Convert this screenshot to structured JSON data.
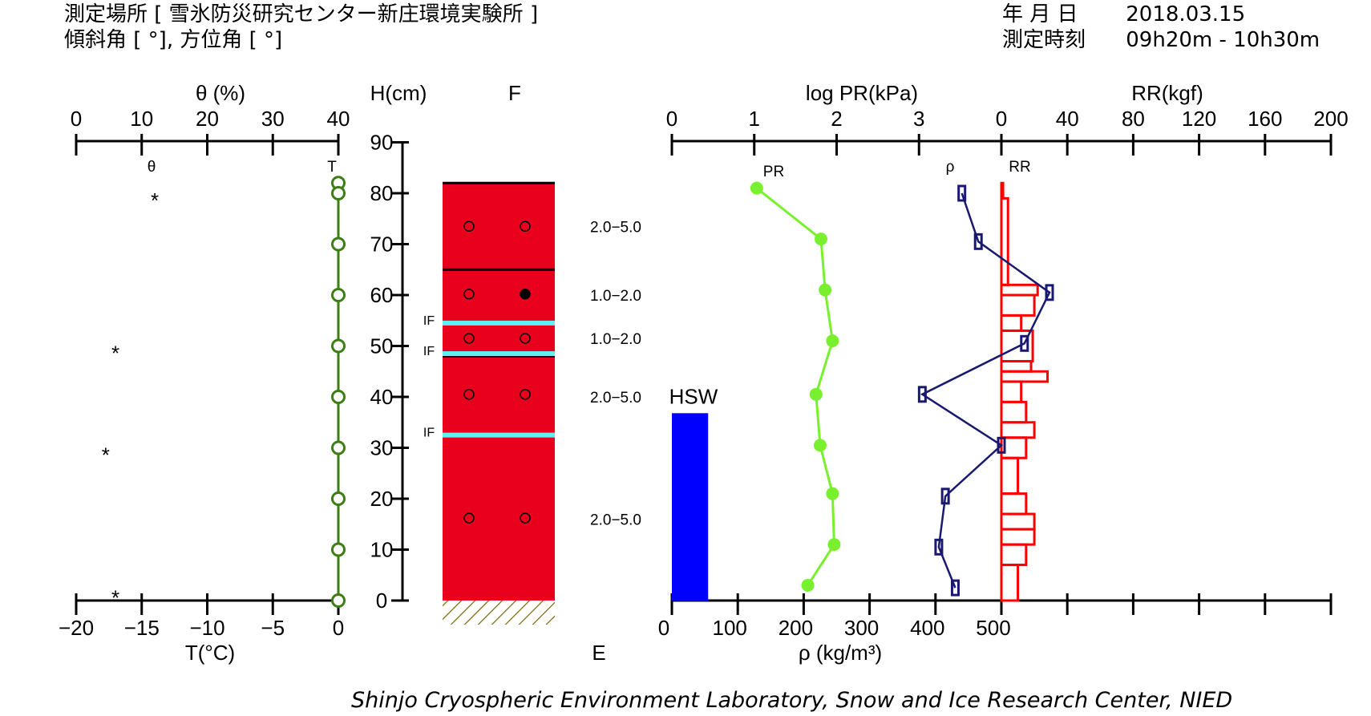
{
  "header": {
    "site_label": "測定場所 [ 雪氷防災研究センター新庄環境実験所 ]",
    "angle_label": "傾斜角 [ °], 方位角 [ °]",
    "date_key": "年 月 日",
    "date_value": "2018.03.15",
    "time_key": "測定時刻",
    "time_value": "09h20m - 10h30m"
  },
  "footer": "Shinjo Cryospheric Environment Laboratory, Snow and Ice Research Center, NIED",
  "chart_data": {
    "type": "snow-pit-profile",
    "height_axis": {
      "label": "H(cm)",
      "ticks": [
        "0",
        "10",
        "20",
        "30",
        "40",
        "50",
        "60",
        "70",
        "80",
        "90"
      ],
      "range": [
        0,
        90
      ]
    },
    "theta": {
      "label": "θ (%)",
      "mark_label": "θ",
      "ticks": [
        "0",
        "10",
        "20",
        "30",
        "40"
      ],
      "range": [
        0,
        40
      ],
      "points": [
        {
          "h": 80,
          "value": 12
        },
        {
          "h": 50,
          "value": 6
        },
        {
          "h": 30,
          "value": 4.5
        },
        {
          "h": 2,
          "value": 6
        }
      ]
    },
    "temperature": {
      "label": "T(°C)",
      "mark_label": "T",
      "ticks": [
        "−20",
        "−15",
        "−10",
        "−5",
        "0"
      ],
      "range": [
        -20,
        0
      ],
      "points": [
        {
          "h": 82,
          "value": 0
        },
        {
          "h": 80,
          "value": 0
        },
        {
          "h": 70,
          "value": 0
        },
        {
          "h": 60,
          "value": 0
        },
        {
          "h": 50,
          "value": 0
        },
        {
          "h": 40,
          "value": 0
        },
        {
          "h": 30,
          "value": 0
        },
        {
          "h": 20,
          "value": 0
        },
        {
          "h": 10,
          "value": 0
        },
        {
          "h": 0,
          "value": 0
        }
      ],
      "color": "#3c7d14"
    },
    "layers": {
      "title": "F",
      "bottom_label": "E",
      "snow_depth": 82,
      "color": "#e8001c",
      "boundaries": [
        65,
        48
      ],
      "ice_films": [
        {
          "h": 54.5,
          "label": "IF"
        },
        {
          "h": 48.5,
          "label": "IF"
        },
        {
          "h": 32.5,
          "label": "IF"
        }
      ],
      "grain_markers": [
        {
          "h": 73.5,
          "left": "open",
          "right": "open"
        },
        {
          "h": 60.2,
          "left": "open",
          "right": "filled"
        },
        {
          "h": 51.5,
          "left": "open",
          "right": "open"
        },
        {
          "h": 40.5,
          "left": "open",
          "right": "open"
        },
        {
          "h": 16.2,
          "left": "open",
          "right": "open"
        }
      ],
      "grain_sizes": [
        {
          "h": 73.5,
          "text": "2.0−5.0"
        },
        {
          "h": 60.0,
          "text": "1.0−2.0"
        },
        {
          "h": 51.5,
          "text": "1.0−2.0"
        },
        {
          "h": 40.0,
          "text": "2.0−5.0"
        },
        {
          "h": 16.0,
          "text": "2.0−5.0"
        }
      ]
    },
    "hsw": {
      "label": "HSW",
      "value_density_axis": 55,
      "top_h": 36.8,
      "color": "#0000ff"
    },
    "pr": {
      "label": "log PR(kPa)",
      "mark_label": "PR",
      "ticks": [
        "0",
        "1",
        "2",
        "3"
      ],
      "range": [
        0,
        4
      ],
      "color": "#78f02d",
      "points": [
        {
          "h": 81,
          "value": 1.03
        },
        {
          "h": 71,
          "value": 1.81
        },
        {
          "h": 61,
          "value": 1.86
        },
        {
          "h": 51,
          "value": 1.95
        },
        {
          "h": 40.5,
          "value": 1.75
        },
        {
          "h": 30.5,
          "value": 1.8
        },
        {
          "h": 21,
          "value": 1.95
        },
        {
          "h": 11,
          "value": 1.97
        },
        {
          "h": 3,
          "value": 1.65
        }
      ]
    },
    "density": {
      "label": "ρ (kg/m³)",
      "mark_label": "ρ",
      "ticks": [
        "0",
        "100",
        "200",
        "300",
        "400",
        "500"
      ],
      "range": [
        0,
        500
      ],
      "color": "#191970",
      "points": [
        {
          "h": 80,
          "value": 440
        },
        {
          "h": 70.5,
          "value": 465
        },
        {
          "h": 60.5,
          "value": 573
        },
        {
          "h": 50.5,
          "value": 535
        },
        {
          "h": 40.5,
          "value": 380
        },
        {
          "h": 30.5,
          "value": 500
        },
        {
          "h": 20.5,
          "value": 415
        },
        {
          "h": 10.5,
          "value": 405
        },
        {
          "h": 2.5,
          "value": 430
        }
      ]
    },
    "rr": {
      "label": "RR(kgf)",
      "mark_label": "RR",
      "ticks": [
        "0",
        "40",
        "80",
        "120",
        "160",
        "200"
      ],
      "range": [
        0,
        200
      ],
      "color": "#ff0000",
      "segments": [
        {
          "top": 82,
          "bottom": 79,
          "value": 1
        },
        {
          "top": 79,
          "bottom": 62,
          "value": 4
        },
        {
          "top": 62,
          "bottom": 60,
          "value": 22
        },
        {
          "top": 60,
          "bottom": 56,
          "value": 20
        },
        {
          "top": 56,
          "bottom": 53,
          "value": 12
        },
        {
          "top": 53,
          "bottom": 47,
          "value": 19
        },
        {
          "top": 47,
          "bottom": 45,
          "value": 18
        },
        {
          "top": 45,
          "bottom": 43,
          "value": 28
        },
        {
          "top": 43,
          "bottom": 39,
          "value": 12
        },
        {
          "top": 39,
          "bottom": 35,
          "value": 15
        },
        {
          "top": 35,
          "bottom": 32,
          "value": 20
        },
        {
          "top": 32,
          "bottom": 28,
          "value": 15
        },
        {
          "top": 28,
          "bottom": 21,
          "value": 10
        },
        {
          "top": 21,
          "bottom": 17,
          "value": 15
        },
        {
          "top": 17,
          "bottom": 14,
          "value": 20
        },
        {
          "top": 14,
          "bottom": 11,
          "value": 20
        },
        {
          "top": 11,
          "bottom": 7,
          "value": 15
        },
        {
          "top": 7,
          "bottom": 0,
          "value": 10
        }
      ]
    }
  }
}
